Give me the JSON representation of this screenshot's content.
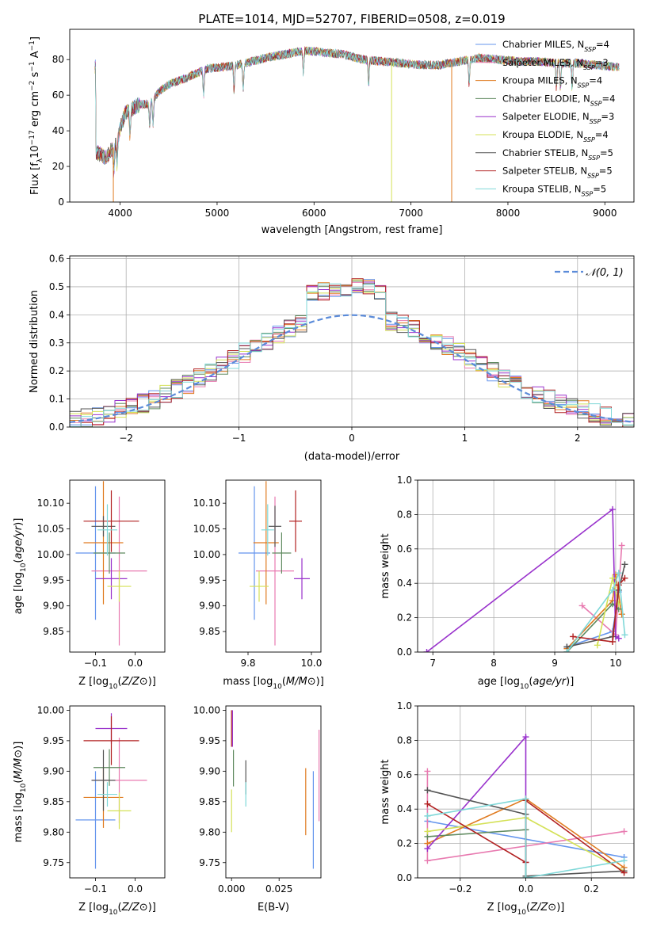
{
  "figure_title": "PLATE=1014, MJD=52707, FIBERID=0508, z=0.019",
  "colors": {
    "Chabrier MILES": "#6495ed",
    "Salpeter MILES": "#e87ab0",
    "Kroupa MILES": "#e07b20",
    "Chabrier ELODIE": "#5f8a5f",
    "Salpeter ELODIE": "#9932cc",
    "Kroupa ELODIE": "#d4e157",
    "Chabrier STELIB": "#555555",
    "Salpeter STELIB": "#b22222",
    "Kroupa STELIB": "#7fd8d8"
  },
  "chart_data": [
    {
      "type": "line",
      "title": "PLATE=1014, MJD=52707, FIBERID=0508, z=0.019",
      "xlabel": "wavelength [Angstrom, rest frame]",
      "ylabel": "Flux [fλ10⁻¹⁷ erg cm⁻² s⁻¹ A⁻¹]",
      "xlim": [
        3480,
        9300
      ],
      "ylim": [
        0,
        97
      ],
      "xticks": [
        4000,
        5000,
        6000,
        7000,
        8000,
        9000
      ],
      "yticks": [
        0,
        20,
        40,
        60,
        80
      ],
      "legend_position": "top-right",
      "legend": [
        {
          "name": "Chabrier MILES",
          "sub": "SSP",
          "n": "4"
        },
        {
          "name": "Salpeter MILES",
          "sub": "SSP",
          "n": "3"
        },
        {
          "name": "Kroupa MILES",
          "sub": "SSP",
          "n": "4"
        },
        {
          "name": "Chabrier ELODIE",
          "sub": "SSP",
          "n": "4"
        },
        {
          "name": "Salpeter ELODIE",
          "sub": "SSP",
          "n": "3"
        },
        {
          "name": "Kroupa ELODIE",
          "sub": "SSP",
          "n": "4"
        },
        {
          "name": "Chabrier STELIB",
          "sub": "SSP",
          "n": "5"
        },
        {
          "name": "Salpeter STELIB",
          "sub": "SSP",
          "n": "5"
        },
        {
          "name": "Kroupa STELIB",
          "sub": "SSP",
          "n": "5"
        }
      ],
      "continuum": [
        [
          3750,
          28
        ],
        [
          3850,
          25
        ],
        [
          3950,
          32
        ],
        [
          4050,
          50
        ],
        [
          4200,
          55
        ],
        [
          4300,
          55
        ],
        [
          4400,
          62
        ],
        [
          4500,
          66
        ],
        [
          4700,
          70
        ],
        [
          4900,
          75
        ],
        [
          5100,
          76
        ],
        [
          5300,
          78
        ],
        [
          5500,
          81
        ],
        [
          5700,
          83
        ],
        [
          5900,
          85
        ],
        [
          6100,
          84
        ],
        [
          6300,
          83
        ],
        [
          6500,
          80
        ],
        [
          6700,
          79
        ],
        [
          6900,
          78
        ],
        [
          7100,
          77
        ],
        [
          7300,
          77
        ],
        [
          7500,
          79
        ],
        [
          7700,
          81
        ],
        [
          7900,
          80
        ],
        [
          8100,
          79
        ],
        [
          8300,
          79
        ],
        [
          8500,
          78
        ],
        [
          8700,
          78
        ],
        [
          8900,
          77
        ],
        [
          9100,
          76
        ]
      ],
      "drops": [
        {
          "series": "Kroupa MILES",
          "x": 3930,
          "y": 0
        },
        {
          "series": "Kroupa ELODIE",
          "x": 6800,
          "y": 0
        },
        {
          "series": "Kroupa MILES",
          "x": 7420,
          "y": 0
        }
      ]
    },
    {
      "type": "histogram",
      "xlabel": "(data-model)/error",
      "ylabel": "Normed distribution",
      "xlim": [
        -2.5,
        2.5
      ],
      "ylim": [
        0,
        0.61
      ],
      "xticks": [
        -2,
        -1,
        0,
        1,
        2
      ],
      "yticks": [
        0.0,
        0.1,
        0.2,
        0.3,
        0.4,
        0.5,
        0.6
      ],
      "grid": true,
      "reference_curve": "𝒩(0, 1)",
      "legend_position": "top-right"
    },
    {
      "type": "scatter",
      "xlabel": "Z [log10(Z/Z⊙)]",
      "ylabel": "age [log10(age/yr)]",
      "xlim": [
        -0.165,
        0.075
      ],
      "ylim": [
        9.81,
        10.145
      ],
      "xticks": [
        -0.1,
        0.0
      ],
      "yticks": [
        9.85,
        9.9,
        9.95,
        10.0,
        10.05,
        10.1
      ],
      "points": [
        {
          "series": "Chabrier MILES",
          "x": -0.1,
          "y": 10.003,
          "xerr": 0.05,
          "yerr": 0.13
        },
        {
          "series": "Salpeter MILES",
          "x": -0.04,
          "y": 9.968,
          "xerr": 0.07,
          "yerr": 0.145
        },
        {
          "series": "Kroupa MILES",
          "x": -0.08,
          "y": 10.023,
          "xerr": 0.05,
          "yerr": 0.12
        },
        {
          "series": "Chabrier ELODIE",
          "x": -0.065,
          "y": 10.003,
          "xerr": 0.04,
          "yerr": 0.04
        },
        {
          "series": "Salpeter ELODIE",
          "x": -0.06,
          "y": 9.953,
          "xerr": 0.04,
          "yerr": 0.04
        },
        {
          "series": "Kroupa ELODIE",
          "x": -0.04,
          "y": 9.938,
          "xerr": 0.03,
          "yerr": 0.03
        },
        {
          "series": "Chabrier STELIB",
          "x": -0.08,
          "y": 10.055,
          "xerr": 0.03,
          "yerr": 0.02
        },
        {
          "series": "Salpeter STELIB",
          "x": -0.06,
          "y": 10.065,
          "xerr": 0.07,
          "yerr": 0.06
        },
        {
          "series": "Kroupa STELIB",
          "x": -0.07,
          "y": 10.048,
          "xerr": 0.025,
          "yerr": 0.05
        }
      ]
    },
    {
      "type": "scatter",
      "xlabel": "mass [log10(M/M⊙)]",
      "ylabel": "",
      "xlim": [
        9.73,
        10.03
      ],
      "ylim": [
        9.81,
        10.145
      ],
      "xticks": [
        9.8,
        10.0
      ],
      "yticks": [
        9.85,
        9.9,
        9.95,
        10.0,
        10.05,
        10.1
      ],
      "points": [
        {
          "series": "Chabrier MILES",
          "x": 9.82,
          "y": 10.003,
          "xerr": 0.05,
          "yerr": 0.13
        },
        {
          "series": "Salpeter MILES",
          "x": 9.885,
          "y": 9.968,
          "xerr": 0.06,
          "yerr": 0.145
        },
        {
          "series": "Kroupa MILES",
          "x": 9.857,
          "y": 10.023,
          "xerr": 0.04,
          "yerr": 0.12
        },
        {
          "series": "Chabrier ELODIE",
          "x": 9.906,
          "y": 10.003,
          "xerr": 0.03,
          "yerr": 0.04
        },
        {
          "series": "Salpeter ELODIE",
          "x": 9.97,
          "y": 9.953,
          "xerr": 0.025,
          "yerr": 0.04
        },
        {
          "series": "Kroupa ELODIE",
          "x": 9.835,
          "y": 9.938,
          "xerr": 0.03,
          "yerr": 0.03
        },
        {
          "series": "Chabrier STELIB",
          "x": 9.885,
          "y": 10.055,
          "xerr": 0.02,
          "yerr": 0.04
        },
        {
          "series": "Salpeter STELIB",
          "x": 9.95,
          "y": 10.065,
          "xerr": 0.02,
          "yerr": 0.06
        },
        {
          "series": "Kroupa STELIB",
          "x": 9.862,
          "y": 10.048,
          "xerr": 0.02,
          "yerr": 0.05
        }
      ]
    },
    {
      "type": "line",
      "xlabel": "age [log10(age/yr)]",
      "ylabel": "mass weight",
      "xlim": [
        6.75,
        10.3
      ],
      "ylim": [
        0,
        1
      ],
      "xticks": [
        7,
        8,
        9,
        10
      ],
      "yticks": [
        0.0,
        0.2,
        0.4,
        0.6,
        0.8,
        1.0
      ],
      "grid": true,
      "series": [
        {
          "name": "Salpeter ELODIE",
          "points": [
            [
              6.9,
              0.0
            ],
            [
              9.95,
              0.83
            ],
            [
              10.0,
              0.09
            ],
            [
              10.05,
              0.08
            ]
          ]
        },
        {
          "name": "Chabrier STELIB",
          "points": [
            [
              9.2,
              0.03
            ],
            [
              9.95,
              0.09
            ],
            [
              10.05,
              0.36
            ],
            [
              10.15,
              0.51
            ]
          ]
        },
        {
          "name": "Salpeter STELIB",
          "points": [
            [
              9.3,
              0.09
            ],
            [
              9.95,
              0.06
            ],
            [
              10.05,
              0.39
            ],
            [
              10.15,
              0.43
            ]
          ]
        },
        {
          "name": "Salpeter MILES",
          "points": [
            [
              9.45,
              0.27
            ],
            [
              10.0,
              0.1
            ],
            [
              10.1,
              0.62
            ]
          ]
        },
        {
          "name": "Kroupa STELIB",
          "points": [
            [
              9.2,
              0.0
            ],
            [
              9.95,
              0.36
            ],
            [
              10.05,
              0.46
            ],
            [
              10.15,
              0.1
            ]
          ]
        },
        {
          "name": "Kroupa ELODIE",
          "points": [
            [
              9.7,
              0.04
            ],
            [
              9.95,
              0.43
            ],
            [
              10.05,
              0.28
            ]
          ]
        },
        {
          "name": "Kroupa MILES",
          "points": [
            [
              9.2,
              0.02
            ],
            [
              9.95,
              0.3
            ],
            [
              10.0,
              0.45
            ],
            [
              10.1,
              0.22
            ]
          ]
        },
        {
          "name": "Chabrier MILES",
          "points": [
            [
              9.2,
              0.03
            ],
            [
              9.95,
              0.12
            ],
            [
              10.05,
              0.35
            ]
          ]
        },
        {
          "name": "Chabrier ELODIE",
          "points": [
            [
              9.2,
              0.0
            ],
            [
              9.95,
              0.28
            ],
            [
              10.05,
              0.25
            ]
          ]
        }
      ]
    },
    {
      "type": "scatter",
      "xlabel": "Z [log10(Z/Z⊙)]",
      "ylabel": "mass [log10(M/M⊙)]",
      "xlim": [
        -0.165,
        0.075
      ],
      "ylim": [
        9.725,
        10.007
      ],
      "xticks": [
        -0.1,
        0.0
      ],
      "yticks": [
        9.75,
        9.8,
        9.85,
        9.9,
        9.95,
        10.0
      ],
      "points": [
        {
          "series": "Chabrier MILES",
          "x": -0.1,
          "y": 9.82,
          "xerr": 0.05,
          "yerr": 0.08
        },
        {
          "series": "Salpeter MILES",
          "x": -0.04,
          "y": 9.885,
          "xerr": 0.07,
          "yerr": 0.07
        },
        {
          "series": "Kroupa MILES",
          "x": -0.08,
          "y": 9.857,
          "xerr": 0.05,
          "yerr": 0.05
        },
        {
          "series": "Chabrier ELODIE",
          "x": -0.065,
          "y": 9.906,
          "xerr": 0.04,
          "yerr": 0.03
        },
        {
          "series": "Salpeter ELODIE",
          "x": -0.06,
          "y": 9.97,
          "xerr": 0.04,
          "yerr": 0.025
        },
        {
          "series": "Kroupa ELODIE",
          "x": -0.04,
          "y": 9.835,
          "xerr": 0.03,
          "yerr": 0.03
        },
        {
          "series": "Chabrier STELIB",
          "x": -0.08,
          "y": 9.885,
          "xerr": 0.03,
          "yerr": 0.05
        },
        {
          "series": "Salpeter STELIB",
          "x": -0.06,
          "y": 9.95,
          "xerr": 0.07,
          "yerr": 0.04
        },
        {
          "series": "Kroupa STELIB",
          "x": -0.07,
          "y": 9.862,
          "xerr": 0.025,
          "yerr": 0.02
        }
      ]
    },
    {
      "type": "scatter",
      "xlabel": "E(B-V)",
      "ylabel": "",
      "xlim": [
        -0.003,
        0.047
      ],
      "ylim": [
        9.725,
        10.007
      ],
      "xticks": [
        0.0,
        0.025
      ],
      "xticklabels": [
        "0.000",
        "0.025"
      ],
      "yticks": [
        9.75,
        9.8,
        9.85,
        9.9,
        9.95,
        10.0
      ],
      "points": [
        {
          "series": "Chabrier MILES",
          "x": 0.043,
          "y": 9.82,
          "yerr": 0.08
        },
        {
          "series": "Salpeter MILES",
          "x": 0.046,
          "y": 9.893,
          "yerr": 0.075
        },
        {
          "series": "Kroupa MILES",
          "x": 0.039,
          "y": 9.85,
          "yerr": 0.055
        },
        {
          "series": "Chabrier ELODIE",
          "x": 0.001,
          "y": 9.905,
          "yerr": 0.03
        },
        {
          "series": "Salpeter ELODIE",
          "x": 0.0005,
          "y": 9.97,
          "yerr": 0.03
        },
        {
          "series": "Kroupa ELODIE",
          "x": 0.0,
          "y": 9.835,
          "yerr": 0.035
        },
        {
          "series": "Chabrier STELIB",
          "x": 0.0075,
          "y": 9.89,
          "yerr": 0.028
        },
        {
          "series": "Salpeter STELIB",
          "x": 0.0,
          "y": 9.97,
          "yerr": 0.03
        },
        {
          "series": "Kroupa STELIB",
          "x": 0.0075,
          "y": 9.862,
          "yerr": 0.02
        }
      ]
    },
    {
      "type": "line",
      "xlabel": "Z [log10(Z/Z⊙)]",
      "ylabel": "mass weight",
      "xlim": [
        -0.33,
        0.33
      ],
      "ylim": [
        0,
        1
      ],
      "xticks": [
        -0.2,
        0.0,
        0.2
      ],
      "yticks": [
        0.0,
        0.2,
        0.4,
        0.6,
        0.8,
        1.0
      ],
      "grid": true,
      "series": [
        {
          "name": "Salpeter ELODIE",
          "points": [
            [
              -0.3,
              0.17
            ],
            [
              0.0,
              0.82
            ],
            [
              0.0,
              0.09
            ]
          ]
        },
        {
          "name": "Chabrier STELIB",
          "points": [
            [
              -0.3,
              0.51
            ],
            [
              0.0,
              0.37
            ],
            [
              0.0,
              0.01
            ],
            [
              0.3,
              0.04
            ]
          ]
        },
        {
          "name": "Salpeter STELIB",
          "points": [
            [
              -0.3,
              0.43
            ],
            [
              0.0,
              0.09
            ],
            [
              0.0,
              0.45
            ],
            [
              0.3,
              0.03
            ]
          ]
        },
        {
          "name": "Salpeter MILES",
          "points": [
            [
              -0.3,
              0.62
            ],
            [
              -0.3,
              0.1
            ],
            [
              0.3,
              0.27
            ]
          ]
        },
        {
          "name": "Kroupa STELIB",
          "points": [
            [
              -0.3,
              0.36
            ],
            [
              0.0,
              0.46
            ],
            [
              0.0,
              0.0
            ],
            [
              0.3,
              0.1
            ]
          ]
        },
        {
          "name": "Kroupa ELODIE",
          "points": [
            [
              -0.3,
              0.27
            ],
            [
              0.0,
              0.35
            ],
            [
              0.3,
              0.04
            ]
          ]
        },
        {
          "name": "Kroupa MILES",
          "points": [
            [
              -0.3,
              0.2
            ],
            [
              0.0,
              0.46
            ],
            [
              0.3,
              0.06
            ]
          ]
        },
        {
          "name": "Chabrier MILES",
          "points": [
            [
              -0.3,
              0.33
            ],
            [
              0.3,
              0.12
            ]
          ]
        },
        {
          "name": "Chabrier ELODIE",
          "points": [
            [
              -0.3,
              0.24
            ],
            [
              0.0,
              0.28
            ],
            [
              0.0,
              0.0
            ]
          ]
        }
      ]
    }
  ]
}
